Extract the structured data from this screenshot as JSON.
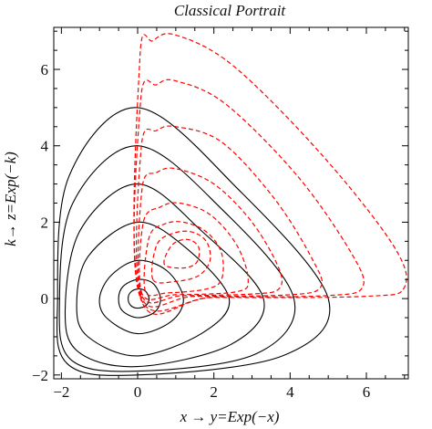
{
  "chart_data": {
    "type": "line",
    "title": "Classical Portrait",
    "xlabel": "x → y=Exp(−x)",
    "ylabel": "k→ z=Exp(−k)",
    "xlim": [
      -2.2,
      7.1
    ],
    "ylim": [
      -2.1,
      7.1
    ],
    "x_ticks": [
      -2,
      0,
      2,
      4,
      6
    ],
    "x_tick_labels": [
      "−2",
      "0",
      "2",
      "4",
      "6"
    ],
    "y_ticks": [
      -2,
      0,
      2,
      4,
      6
    ],
    "y_tick_labels": [
      "−2",
      "0",
      "2",
      "4",
      "6"
    ],
    "grid": false,
    "legend": "none",
    "series_style": {
      "solid": {
        "color": "#000000",
        "dash": "none"
      },
      "dashed": {
        "color": "#ff0000",
        "dash": "dashed"
      }
    },
    "series": [
      {
        "style": "solid",
        "closed": true,
        "points": [
          [
            -1.0,
            0.0
          ],
          [
            -0.8,
            -0.52
          ],
          [
            0.0,
            -0.92
          ],
          [
            0.88,
            -0.6
          ],
          [
            1.2,
            0.0
          ],
          [
            0.78,
            0.72
          ],
          [
            0.0,
            1.0
          ],
          [
            -0.7,
            0.6
          ]
        ]
      },
      {
        "style": "solid",
        "closed": true,
        "points": [
          [
            -1.6,
            -0.2
          ],
          [
            -1.3,
            -1.0
          ],
          [
            0.0,
            -1.5
          ],
          [
            1.7,
            -0.9
          ],
          [
            2.4,
            0.0
          ],
          [
            1.3,
            1.3
          ],
          [
            0.0,
            2.0
          ],
          [
            -1.3,
            1.1
          ]
        ]
      },
      {
        "style": "solid",
        "closed": true,
        "points": [
          [
            -1.9,
            -0.3
          ],
          [
            -1.55,
            -1.4
          ],
          [
            0.0,
            -1.78
          ],
          [
            2.45,
            -1.2
          ],
          [
            3.3,
            0.0
          ],
          [
            1.7,
            1.75
          ],
          [
            0.0,
            3.0
          ],
          [
            -1.5,
            1.8
          ]
        ]
      },
      {
        "style": "solid",
        "closed": true,
        "points": [
          [
            -2.05,
            -0.1
          ],
          [
            -1.75,
            -1.6
          ],
          [
            0.0,
            -1.9
          ],
          [
            3.1,
            -1.45
          ],
          [
            4.1,
            0.0
          ],
          [
            2.2,
            2.35
          ],
          [
            0.0,
            4.0
          ],
          [
            -1.7,
            2.5
          ]
        ]
      },
      {
        "style": "solid",
        "closed": true,
        "points": [
          [
            -2.1,
            0.0
          ],
          [
            -1.85,
            -1.7
          ],
          [
            0.0,
            -2.0
          ],
          [
            3.8,
            -1.5
          ],
          [
            5.0,
            0.0
          ],
          [
            2.6,
            2.9
          ],
          [
            0.0,
            5.0
          ],
          [
            -1.8,
            3.2
          ]
        ]
      },
      {
        "style": "solid",
        "closed": true,
        "points": [
          [
            -0.5,
            0.0
          ],
          [
            -0.4,
            -0.32
          ],
          [
            0.0,
            -0.5
          ],
          [
            0.45,
            -0.35
          ],
          [
            0.6,
            0.0
          ],
          [
            0.4,
            0.4
          ],
          [
            0.0,
            0.5
          ],
          [
            -0.38,
            0.32
          ]
        ]
      },
      {
        "style": "solid",
        "closed": true,
        "points": [
          [
            -0.25,
            0.0
          ],
          [
            -0.18,
            -0.18
          ],
          [
            0.0,
            -0.25
          ],
          [
            0.22,
            -0.18
          ],
          [
            0.3,
            0.0
          ],
          [
            0.2,
            0.2
          ],
          [
            0.0,
            0.25
          ],
          [
            -0.18,
            0.17
          ]
        ]
      },
      {
        "style": "dashed",
        "closed": true,
        "points": [
          [
            0.06,
            0.06
          ],
          [
            0.06,
            6.3
          ],
          [
            0.4,
            6.75
          ],
          [
            1.0,
            6.9
          ],
          [
            2.5,
            6.1
          ],
          [
            4.8,
            3.8
          ],
          [
            6.7,
            1.4
          ],
          [
            7.0,
            0.3
          ],
          [
            6.0,
            0.06
          ],
          [
            2.0,
            0.03
          ]
        ]
      },
      {
        "style": "dashed",
        "closed": true,
        "points": [
          [
            0.06,
            0.06
          ],
          [
            0.08,
            5.2
          ],
          [
            0.5,
            5.6
          ],
          [
            1.0,
            5.7
          ],
          [
            2.3,
            5.1
          ],
          [
            4.2,
            3.2
          ],
          [
            5.6,
            1.2
          ],
          [
            5.9,
            0.3
          ],
          [
            5.0,
            0.08
          ],
          [
            2.0,
            0.04
          ]
        ]
      },
      {
        "style": "dashed",
        "closed": true,
        "points": [
          [
            0.08,
            0.08
          ],
          [
            0.1,
            4.0
          ],
          [
            0.5,
            4.4
          ],
          [
            1.0,
            4.5
          ],
          [
            2.2,
            4.1
          ],
          [
            3.6,
            2.6
          ],
          [
            4.6,
            1.0
          ],
          [
            4.8,
            0.3
          ],
          [
            4.0,
            0.1
          ],
          [
            1.5,
            0.06
          ]
        ]
      },
      {
        "style": "dashed",
        "closed": true,
        "points": [
          [
            0.1,
            0.1
          ],
          [
            0.12,
            2.9
          ],
          [
            0.5,
            3.3
          ],
          [
            1.0,
            3.4
          ],
          [
            2.0,
            3.0
          ],
          [
            3.0,
            2.0
          ],
          [
            3.7,
            0.8
          ],
          [
            3.7,
            0.25
          ],
          [
            3.0,
            0.12
          ],
          [
            1.2,
            0.08
          ]
        ]
      },
      {
        "style": "dashed",
        "closed": true,
        "points": [
          [
            0.12,
            0.12
          ],
          [
            0.15,
            2.0
          ],
          [
            0.6,
            2.4
          ],
          [
            1.1,
            2.5
          ],
          [
            1.9,
            2.2
          ],
          [
            2.6,
            1.4
          ],
          [
            2.9,
            0.5
          ],
          [
            2.6,
            0.18
          ],
          [
            1.0,
            0.1
          ]
        ]
      },
      {
        "style": "dashed",
        "closed": true,
        "points": [
          [
            0.2,
            0.2
          ],
          [
            0.3,
            1.6
          ],
          [
            0.7,
            1.95
          ],
          [
            1.2,
            2.0
          ],
          [
            1.8,
            1.75
          ],
          [
            2.2,
            1.2
          ],
          [
            2.2,
            0.5
          ],
          [
            1.8,
            0.25
          ],
          [
            0.8,
            0.15
          ]
        ]
      },
      {
        "style": "dashed",
        "closed": true,
        "points": [
          [
            0.4,
            0.5
          ],
          [
            0.5,
            1.4
          ],
          [
            0.9,
            1.7
          ],
          [
            1.4,
            1.75
          ],
          [
            1.8,
            1.5
          ],
          [
            1.9,
            1.0
          ],
          [
            1.6,
            0.6
          ],
          [
            1.0,
            0.45
          ]
        ]
      },
      {
        "style": "dashed",
        "closed": true,
        "points": [
          [
            0.7,
            0.9
          ],
          [
            0.9,
            1.4
          ],
          [
            1.3,
            1.55
          ],
          [
            1.6,
            1.35
          ],
          [
            1.55,
            0.95
          ],
          [
            1.2,
            0.8
          ]
        ]
      }
    ]
  }
}
